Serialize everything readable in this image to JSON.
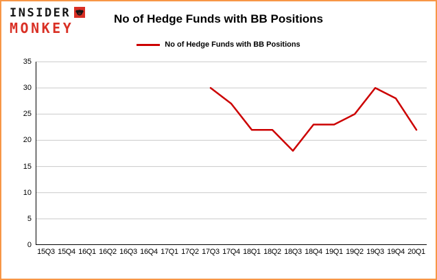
{
  "branding": {
    "logo_line1": "INSIDER",
    "logo_line2": "MONKEY"
  },
  "header": {
    "title": "No of Hedge Funds with BB Positions"
  },
  "legend": {
    "label": "No of Hedge Funds with BB Positions"
  },
  "colors": {
    "series_red": "#cc0000",
    "logo_black": "#161616",
    "logo_red": "#d93025",
    "page_border_orange": "#f79646",
    "gridline_gray": "#c9c9c9",
    "axis_black": "#000000"
  },
  "chart_data": {
    "type": "line",
    "title": "No of Hedge Funds with BB Positions",
    "categories": [
      "15Q3",
      "15Q4",
      "16Q1",
      "16Q2",
      "16Q3",
      "16Q4",
      "17Q1",
      "17Q2",
      "17Q3",
      "17Q4",
      "18Q1",
      "18Q2",
      "18Q3",
      "18Q4",
      "19Q1",
      "19Q2",
      "19Q3",
      "19Q4",
      "20Q1"
    ],
    "series": [
      {
        "name": "No of Hedge Funds with BB Positions",
        "color": "#cc0000",
        "x": [
          "17Q3",
          "17Q4",
          "18Q1",
          "18Q2",
          "18Q3",
          "18Q4",
          "19Q1",
          "19Q2",
          "19Q3",
          "19Q4",
          "20Q1"
        ],
        "values": [
          30,
          27,
          22,
          22,
          18,
          23,
          23,
          25,
          30,
          28,
          22
        ]
      }
    ],
    "ylim": [
      0,
      35
    ],
    "yticks": [
      0,
      5,
      10,
      15,
      20,
      25,
      30,
      35
    ],
    "grid": "horizontal-only",
    "legend_position": "top-center",
    "xlabel": "",
    "ylabel": ""
  }
}
